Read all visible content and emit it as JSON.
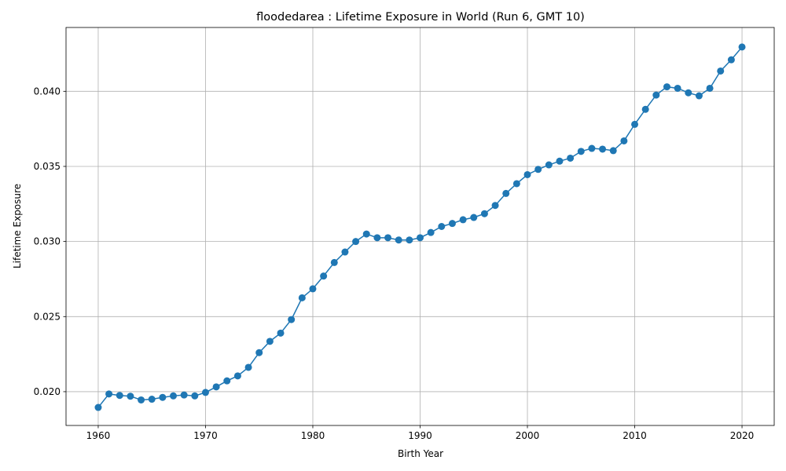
{
  "chart_data": {
    "type": "line",
    "title": "floodedarea : Lifetime Exposure in World (Run 6, GMT 10)",
    "xlabel": "Birth Year",
    "ylabel": "Lifetime Exposure",
    "xlim": [
      1957,
      2023
    ],
    "ylim": [
      0.01775,
      0.04425
    ],
    "xticks": [
      1960,
      1970,
      1980,
      1990,
      2000,
      2010,
      2020
    ],
    "yticks": [
      0.02,
      0.025,
      0.03,
      0.035,
      0.04
    ],
    "ytick_labels": [
      "0.020",
      "0.025",
      "0.030",
      "0.035",
      "0.040"
    ],
    "grid": true,
    "color": "#1f77b4",
    "marker": "circle",
    "x": [
      1960,
      1961,
      1962,
      1963,
      1964,
      1965,
      1966,
      1967,
      1968,
      1969,
      1970,
      1971,
      1972,
      1973,
      1974,
      1975,
      1976,
      1977,
      1978,
      1979,
      1980,
      1981,
      1982,
      1983,
      1984,
      1985,
      1986,
      1987,
      1988,
      1989,
      1990,
      1991,
      1992,
      1993,
      1994,
      1995,
      1996,
      1997,
      1998,
      1999,
      2000,
      2001,
      2002,
      2003,
      2004,
      2005,
      2006,
      2007,
      2008,
      2009,
      2010,
      2011,
      2012,
      2013,
      2014,
      2015,
      2016,
      2017,
      2018,
      2019,
      2020
    ],
    "series": [
      {
        "values": [
          0.01895,
          0.01985,
          0.01975,
          0.0197,
          0.01945,
          0.0195,
          0.01962,
          0.01972,
          0.01978,
          0.01972,
          0.01995,
          0.02032,
          0.02072,
          0.02105,
          0.02162,
          0.0226,
          0.02335,
          0.0239,
          0.0248,
          0.02625,
          0.02685,
          0.0277,
          0.0286,
          0.0293,
          0.03,
          0.0305,
          0.03025,
          0.03025,
          0.0301,
          0.0301,
          0.03025,
          0.0306,
          0.031,
          0.0312,
          0.03145,
          0.0316,
          0.03185,
          0.0324,
          0.0332,
          0.03385,
          0.03445,
          0.0348,
          0.0351,
          0.03535,
          0.03555,
          0.036,
          0.0362,
          0.03615,
          0.03605,
          0.0367,
          0.0378,
          0.0388,
          0.03975,
          0.0403,
          0.0402,
          0.0399,
          0.0397,
          0.0402,
          0.04135,
          0.0421,
          0.04295
        ]
      }
    ]
  }
}
